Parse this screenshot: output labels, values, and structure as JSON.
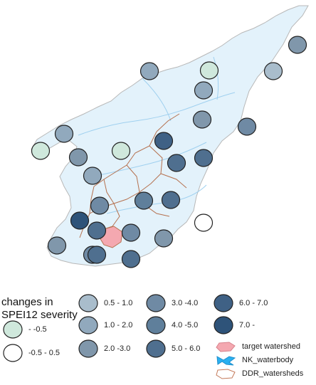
{
  "legend": {
    "title_line1": "changes in",
    "title_line2": "SPEI12 severity",
    "classes": [
      {
        "label": "- -0.5",
        "color": "#cfe8dc"
      },
      {
        "label": "-0.5 - 0.5",
        "color": "#ffffff"
      },
      {
        "label": "0.5 - 1.0",
        "color": "#a9bdcc"
      },
      {
        "label": "1.0 - 2.0",
        "color": "#91a9bd"
      },
      {
        "label": "2.0 -3.0",
        "color": "#8097ab"
      },
      {
        "label": "3.0 -4.0",
        "color": "#6f8aa4"
      },
      {
        "label": "4.0 -5.0",
        "color": "#5f7f9b"
      },
      {
        "label": "5.0 - 6.0",
        "color": "#4f6f8f"
      },
      {
        "label": "6.0 - 7.0",
        "color": "#3f6185"
      },
      {
        "label": "7.0 -",
        "color": "#2e5379"
      }
    ],
    "layers": [
      {
        "label": "target watershed",
        "icon": "pink-polygon-icon",
        "color": "#f4a8b0"
      },
      {
        "label": "NK_waterbody",
        "icon": "blue-waterbody-icon",
        "color": "#2ab0f0"
      },
      {
        "label": "DDR_watersheds",
        "icon": "outline-polygon-icon",
        "color": "#c47a5a"
      }
    ]
  },
  "colors": {
    "land_fill": "#e3f2fb",
    "land_stroke": "#b8b8b8",
    "watershed_lines": "#b5714f",
    "target_fill": "#f4a8b0",
    "circle_stroke": "#222222"
  },
  "stations": [
    {
      "class": "2.0 -3.0"
    },
    {
      "class": "- -0.5"
    },
    {
      "class": "1.0 - 2.0"
    },
    {
      "class": "0.5 - 1.0"
    },
    {
      "class": "1.0 - 2.0"
    },
    {
      "class": "2.0 -3.0"
    },
    {
      "class": "3.0 -4.0"
    },
    {
      "class": "1.0 - 2.0"
    },
    {
      "class": "- -0.5"
    },
    {
      "class": "2.0 -3.0"
    },
    {
      "class": "- -0.5"
    },
    {
      "class": "6.0 - 7.0"
    },
    {
      "class": "5.0 - 6.0"
    },
    {
      "class": "5.0 - 6.0"
    },
    {
      "class": "1.0 - 2.0"
    },
    {
      "class": "3.0 -4.0"
    },
    {
      "class": "4.0 -5.0"
    },
    {
      "class": "5.0 - 6.0"
    },
    {
      "class": "7.0 -"
    },
    {
      "class": "3.0 -4.0"
    },
    {
      "class": "-0.5 - 0.5"
    },
    {
      "class": "2.0 -3.0"
    },
    {
      "class": "5.0 - 6.0"
    },
    {
      "class": "2.0 -3.0"
    },
    {
      "class": "3.0 -4.0"
    },
    {
      "class": "5.0 - 6.0"
    },
    {
      "class": "5.0 - 6.0"
    }
  ]
}
